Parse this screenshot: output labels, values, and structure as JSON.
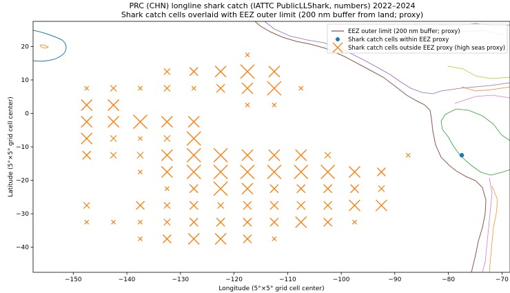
{
  "chart_data": {
    "type": "scatter",
    "title": "PRC (CHN) longline shark catch (IATTC PublicLLShark, numbers) 2022–2024",
    "subtitle": "Shark catch cells overlaid with EEZ outer limit (200 nm buffer from land; proxy)",
    "xlabel": "Longitude (5°×5° grid cell center)",
    "ylabel": "Latitude (5°×5° grid cell center)",
    "xlim": [
      -157.5,
      -68.5
    ],
    "ylim": [
      -47.5,
      27.5
    ],
    "xticks": [
      -150,
      -140,
      -130,
      -120,
      -110,
      -100,
      -90,
      -80,
      -70
    ],
    "yticks": [
      -40,
      -30,
      -20,
      -10,
      0,
      10,
      20
    ],
    "grid": false,
    "legend_position": "top-right",
    "colors": {
      "inside": "#1f77b4",
      "outside": "#ff7f0e"
    },
    "legend": [
      "EEZ outer limit (200 nm buffer; proxy)",
      "Shark catch cells within EEZ proxy",
      "Shark catch cells outside EEZ proxy (high seas proxy)"
    ],
    "series": [
      {
        "name": "Shark catch cells within EEZ proxy",
        "marker": "dot",
        "points": [
          [
            -77.5,
            -12.5
          ]
        ]
      },
      {
        "name": "Shark catch cells outside EEZ proxy (high seas proxy)",
        "marker": "x",
        "points": [
          [
            -117.5,
            17.5,
            1
          ],
          [
            -132.5,
            12.5,
            2
          ],
          [
            -127.5,
            12.5,
            3
          ],
          [
            -122.5,
            12.5,
            4
          ],
          [
            -117.5,
            12.5,
            5
          ],
          [
            -112.5,
            12.5,
            4
          ],
          [
            -147.5,
            7.5,
            1
          ],
          [
            -142.5,
            7.5,
            2
          ],
          [
            -137.5,
            7.5,
            1
          ],
          [
            -132.5,
            7.5,
            2
          ],
          [
            -127.5,
            7.5,
            1
          ],
          [
            -122.5,
            7.5,
            3
          ],
          [
            -117.5,
            7.5,
            4
          ],
          [
            -112.5,
            7.5,
            5
          ],
          [
            -107.5,
            7.5,
            1
          ],
          [
            -147.5,
            2.5,
            4
          ],
          [
            -142.5,
            2.5,
            4
          ],
          [
            -117.5,
            2.5,
            1
          ],
          [
            -112.5,
            2.5,
            1
          ],
          [
            -147.5,
            -2.5,
            4
          ],
          [
            -142.5,
            -2.5,
            4
          ],
          [
            -137.5,
            -2.5,
            5
          ],
          [
            -132.5,
            -2.5,
            4
          ],
          [
            -127.5,
            -2.5,
            4
          ],
          [
            -147.5,
            -7.5,
            4
          ],
          [
            -142.5,
            -7.5,
            2
          ],
          [
            -137.5,
            -7.5,
            1
          ],
          [
            -132.5,
            -7.5,
            2
          ],
          [
            -127.5,
            -7.5,
            5
          ],
          [
            -147.5,
            -12.5,
            3
          ],
          [
            -142.5,
            -12.5,
            2
          ],
          [
            -137.5,
            -12.5,
            2
          ],
          [
            -132.5,
            -12.5,
            4
          ],
          [
            -127.5,
            -12.5,
            5
          ],
          [
            -122.5,
            -12.5,
            5
          ],
          [
            -117.5,
            -12.5,
            4
          ],
          [
            -112.5,
            -12.5,
            4
          ],
          [
            -107.5,
            -12.5,
            4
          ],
          [
            -102.5,
            -12.5,
            2
          ],
          [
            -87.5,
            -12.5,
            1
          ],
          [
            -137.5,
            -17.5,
            1
          ],
          [
            -132.5,
            -17.5,
            4
          ],
          [
            -127.5,
            -17.5,
            5
          ],
          [
            -122.5,
            -17.5,
            5
          ],
          [
            -117.5,
            -17.5,
            5
          ],
          [
            -112.5,
            -17.5,
            5
          ],
          [
            -107.5,
            -17.5,
            5
          ],
          [
            -102.5,
            -17.5,
            5
          ],
          [
            -97.5,
            -17.5,
            4
          ],
          [
            -92.5,
            -17.5,
            3
          ],
          [
            -132.5,
            -22.5,
            1
          ],
          [
            -127.5,
            -22.5,
            3
          ],
          [
            -122.5,
            -22.5,
            5
          ],
          [
            -117.5,
            -22.5,
            4
          ],
          [
            -112.5,
            -22.5,
            3
          ],
          [
            -107.5,
            -22.5,
            3
          ],
          [
            -102.5,
            -22.5,
            3
          ],
          [
            -97.5,
            -22.5,
            3
          ],
          [
            -92.5,
            -22.5,
            2
          ],
          [
            -147.5,
            -27.5,
            2
          ],
          [
            -137.5,
            -27.5,
            3
          ],
          [
            -132.5,
            -27.5,
            2
          ],
          [
            -127.5,
            -27.5,
            3
          ],
          [
            -122.5,
            -27.5,
            2
          ],
          [
            -117.5,
            -27.5,
            3
          ],
          [
            -112.5,
            -27.5,
            3
          ],
          [
            -107.5,
            -27.5,
            3
          ],
          [
            -102.5,
            -27.5,
            3
          ],
          [
            -97.5,
            -27.5,
            4
          ],
          [
            -92.5,
            -27.5,
            4
          ],
          [
            -147.5,
            -32.5,
            1
          ],
          [
            -142.5,
            -32.5,
            1
          ],
          [
            -137.5,
            -32.5,
            1
          ],
          [
            -132.5,
            -32.5,
            2
          ],
          [
            -127.5,
            -32.5,
            3
          ],
          [
            -122.5,
            -32.5,
            3
          ],
          [
            -117.5,
            -32.5,
            3
          ],
          [
            -112.5,
            -32.5,
            3
          ],
          [
            -107.5,
            -32.5,
            4
          ],
          [
            -102.5,
            -32.5,
            3
          ],
          [
            -97.5,
            -32.5,
            1
          ],
          [
            -137.5,
            -37.5,
            1
          ],
          [
            -132.5,
            -37.5,
            3
          ],
          [
            -127.5,
            -37.5,
            4
          ],
          [
            -122.5,
            -37.5,
            4
          ],
          [
            -117.5,
            -37.5,
            3
          ],
          [
            -112.5,
            -37.5,
            1
          ]
        ]
      }
    ]
  }
}
